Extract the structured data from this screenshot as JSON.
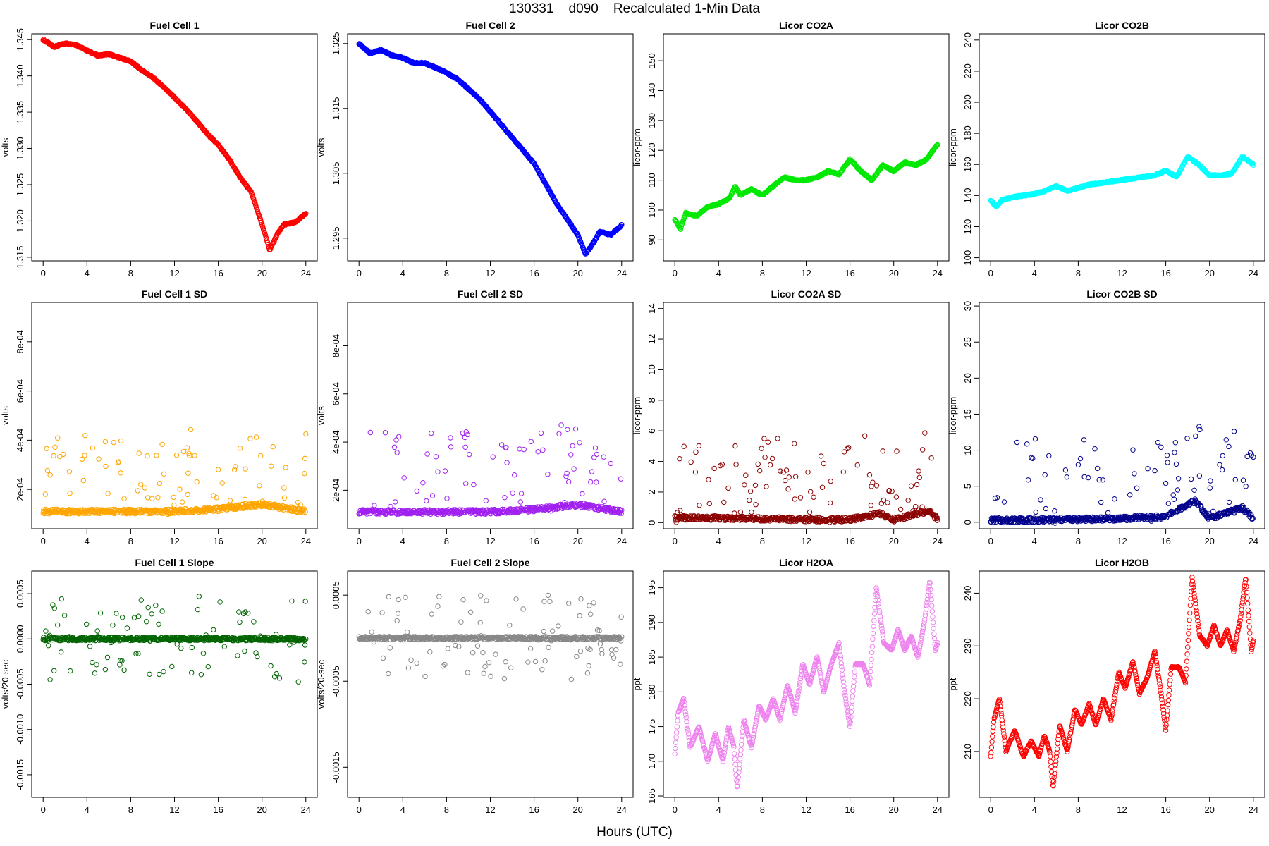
{
  "figure": {
    "title": "130331    d090    Recalculated 1-Min Data",
    "xlabel": "Hours (UTC)"
  },
  "chart_data": [
    {
      "type": "scatter",
      "title": "Fuel Cell 1",
      "xlabel": "",
      "ylabel": "volts",
      "color": "#ff0000",
      "xlim": [
        0,
        24
      ],
      "ylim": [
        1.3145,
        1.3458
      ],
      "xticks": [
        "0",
        "4",
        "8",
        "12",
        "16",
        "20",
        "24"
      ],
      "yticks": [
        1.315,
        1.32,
        1.325,
        1.33,
        1.335,
        1.34,
        1.345
      ],
      "ytick_labels": [
        "1.315",
        "1.320",
        "1.325",
        "1.330",
        "1.335",
        "1.340",
        "1.345"
      ],
      "grid": false,
      "series": [
        {
          "x": [
            0,
            1,
            2,
            3,
            4,
            5,
            6,
            7,
            8,
            9,
            10,
            11,
            12,
            13,
            14,
            15,
            16,
            17,
            18,
            19,
            20,
            20.7,
            21.5,
            22,
            23,
            24
          ],
          "y": [
            1.345,
            1.344,
            1.3445,
            1.3443,
            1.3435,
            1.3428,
            1.343,
            1.3425,
            1.342,
            1.3408,
            1.3398,
            1.3385,
            1.337,
            1.3355,
            1.3338,
            1.332,
            1.3305,
            1.3285,
            1.326,
            1.324,
            1.3195,
            1.316,
            1.3185,
            1.3195,
            1.3198,
            1.321
          ]
        }
      ]
    },
    {
      "type": "scatter",
      "title": "Fuel Cell 2",
      "xlabel": "",
      "ylabel": "volts",
      "color": "#0000ff",
      "xlim": [
        0,
        24
      ],
      "ylim": [
        1.2915,
        1.3265
      ],
      "xticks": [
        "0",
        "4",
        "8",
        "12",
        "16",
        "20",
        "24"
      ],
      "yticks": [
        1.295,
        1.305,
        1.315,
        1.325
      ],
      "ytick_labels": [
        "1.295",
        "1.305",
        "1.315",
        "1.325"
      ],
      "grid": false,
      "series": [
        {
          "x": [
            0,
            1,
            2,
            3,
            4,
            5,
            6,
            7,
            8,
            9,
            10,
            11,
            12,
            13,
            14,
            15,
            16,
            17,
            18,
            19,
            20,
            20.7,
            21.5,
            22,
            23,
            24
          ],
          "y": [
            1.325,
            1.3235,
            1.324,
            1.3232,
            1.3228,
            1.322,
            1.322,
            1.3213,
            1.3205,
            1.3195,
            1.318,
            1.3165,
            1.3145,
            1.3125,
            1.3105,
            1.3085,
            1.3065,
            1.3035,
            1.3005,
            1.298,
            1.2955,
            1.2925,
            1.2945,
            1.296,
            1.2955,
            1.297
          ]
        }
      ]
    },
    {
      "type": "scatter",
      "title": "Licor CO2A",
      "xlabel": "",
      "ylabel": "licor-ppm",
      "color": "#00e800",
      "xlim": [
        0,
        24
      ],
      "ylim": [
        83,
        159
      ],
      "xticks": [
        "0",
        "4",
        "8",
        "12",
        "16",
        "20",
        "24"
      ],
      "yticks": [
        90,
        100,
        110,
        120,
        130,
        140,
        150
      ],
      "ytick_labels": [
        "90",
        "100",
        "110",
        "120",
        "130",
        "140",
        "150"
      ],
      "grid": false,
      "series": [
        {
          "x": [
            0,
            0.5,
            1,
            2,
            3,
            4,
            5,
            5.5,
            6,
            7,
            8,
            9,
            10,
            11,
            12,
            13,
            14,
            15,
            16,
            17,
            18,
            19,
            20,
            21,
            22,
            23,
            24
          ],
          "y": [
            97,
            93.5,
            99,
            98,
            101,
            102,
            104,
            108,
            105,
            107,
            105,
            108,
            111,
            110,
            110,
            111,
            113,
            112,
            117,
            113,
            110,
            115,
            113,
            116,
            115,
            117,
            122
          ]
        }
      ]
    },
    {
      "type": "scatter",
      "title": "Licor CO2B",
      "xlabel": "",
      "ylabel": "licor-ppm",
      "color": "#00ffff",
      "xlim": [
        0,
        24
      ],
      "ylim": [
        98,
        244
      ],
      "xticks": [
        "0",
        "4",
        "8",
        "12",
        "16",
        "20",
        "24"
      ],
      "yticks": [
        100,
        120,
        140,
        160,
        180,
        200,
        220,
        240
      ],
      "ytick_labels": [
        "100",
        "120",
        "140",
        "160",
        "180",
        "200",
        "220",
        "240"
      ],
      "grid": false,
      "series": [
        {
          "x": [
            0,
            0.5,
            1,
            2,
            3,
            4,
            5,
            6,
            7,
            8,
            9,
            10,
            11,
            12,
            13,
            14,
            15,
            16,
            17,
            18,
            19,
            20,
            21,
            22,
            23,
            24
          ],
          "y": [
            137,
            133,
            137,
            139,
            140,
            141,
            143,
            146,
            143,
            145,
            147,
            148,
            149,
            150,
            151,
            152,
            153,
            156,
            152,
            165,
            160,
            153,
            153,
            154,
            165,
            160
          ]
        }
      ]
    },
    {
      "type": "scatter",
      "title": "Fuel Cell 1 SD",
      "xlabel": "",
      "ylabel": "volts",
      "color": "#ffa500",
      "xlim": [
        0,
        24
      ],
      "ylim": [
        4e-05,
        0.00096
      ],
      "xticks": [
        "0",
        "4",
        "8",
        "12",
        "16",
        "20",
        "24"
      ],
      "yticks": [
        0.0002,
        0.0004,
        0.0006,
        0.0008
      ],
      "ytick_labels": [
        "2e-04",
        "4e-04",
        "6e-04",
        "8e-04"
      ],
      "grid": false,
      "series": [
        {
          "x": [
            0,
            4,
            8,
            12,
            16,
            20,
            24
          ],
          "y": [
            0.00011,
            0.00011,
            0.00011,
            0.00011,
            0.00012,
            0.00014,
            0.00011
          ]
        }
      ]
    },
    {
      "type": "scatter",
      "title": "Fuel Cell 2 SD",
      "xlabel": "",
      "ylabel": "volts",
      "color": "#a020f0",
      "xlim": [
        0,
        24
      ],
      "ylim": [
        4e-05,
        0.00098
      ],
      "xticks": [
        "0",
        "4",
        "8",
        "12",
        "16",
        "20",
        "24"
      ],
      "yticks": [
        0.0002,
        0.0004,
        0.0006,
        0.0008
      ],
      "ytick_labels": [
        "2e-04",
        "4e-04",
        "6e-04",
        "8e-04"
      ],
      "grid": false,
      "series": [
        {
          "x": [
            0,
            4,
            8,
            12,
            16,
            20,
            24
          ],
          "y": [
            0.00011,
            0.00011,
            0.00011,
            0.00011,
            0.00012,
            0.00014,
            0.00011
          ]
        }
      ]
    },
    {
      "type": "scatter",
      "title": "Licor CO2A SD",
      "xlabel": "",
      "ylabel": "licor-ppm",
      "color": "#8b0000",
      "xlim": [
        0,
        24
      ],
      "ylim": [
        -0.4,
        14.4
      ],
      "xticks": [
        "0",
        "4",
        "8",
        "12",
        "16",
        "20",
        "24"
      ],
      "yticks": [
        0,
        2,
        4,
        6,
        8,
        10,
        12,
        14
      ],
      "ytick_labels": [
        "0",
        "2",
        "4",
        "6",
        "8",
        "10",
        "12",
        "14"
      ],
      "grid": false,
      "series": [
        {
          "x": [
            0,
            4,
            8,
            12,
            16,
            18.7,
            20,
            23.3,
            24
          ],
          "y": [
            0.3,
            0.3,
            0.25,
            0.2,
            0.2,
            0.6,
            0.2,
            0.8,
            0.2
          ]
        }
      ]
    },
    {
      "type": "scatter",
      "title": "Licor CO2B SD",
      "xlabel": "",
      "ylabel": "licor-ppm",
      "color": "#00008b",
      "xlim": [
        0,
        24
      ],
      "ylim": [
        -0.9,
        30.5
      ],
      "xticks": [
        "0",
        "4",
        "8",
        "12",
        "16",
        "20",
        "24"
      ],
      "yticks": [
        0,
        5,
        10,
        15,
        20,
        25,
        30
      ],
      "ytick_labels": [
        "0",
        "5",
        "10",
        "15",
        "20",
        "25",
        "30"
      ],
      "grid": false,
      "series": [
        {
          "x": [
            0,
            4,
            8,
            12,
            16,
            18.7,
            20,
            23,
            24
          ],
          "y": [
            0.3,
            0.3,
            0.4,
            0.5,
            0.8,
            3,
            0.5,
            2,
            0.5
          ]
        }
      ]
    },
    {
      "type": "scatter",
      "title": "Fuel Cell 1 Slope",
      "xlabel": "",
      "ylabel": "volts/20-sec",
      "color": "#006400",
      "xlim": [
        0,
        24
      ],
      "ylim": [
        -0.00175,
        0.00075
      ],
      "xticks": [
        "0",
        "4",
        "8",
        "12",
        "16",
        "20",
        "24"
      ],
      "yticks": [
        -0.0015,
        -0.001,
        -0.0005,
        0,
        0.0005
      ],
      "ytick_labels": [
        "-0.0015",
        "-0.0010",
        "-0.0005",
        "0.0000",
        "0.0005"
      ],
      "grid": false,
      "series": [
        {
          "x": [
            0,
            4,
            8,
            12,
            16,
            20,
            24
          ],
          "y": [
            0,
            0,
            0,
            0,
            0,
            0,
            0
          ]
        }
      ]
    },
    {
      "type": "scatter",
      "title": "Fuel Cell 2 Slope",
      "xlabel": "",
      "ylabel": "volts/20-sec",
      "color": "#888888",
      "xlim": [
        0,
        24
      ],
      "ylim": [
        -0.00185,
        0.00078
      ],
      "xticks": [
        "0",
        "4",
        "8",
        "12",
        "16",
        "20",
        "24"
      ],
      "yticks": [
        -0.0015,
        -0.0005,
        0.0005
      ],
      "ytick_labels": [
        "-0.0015",
        "-0.0005",
        "0.0005"
      ],
      "grid": false,
      "series": [
        {
          "x": [
            0,
            4,
            8,
            12,
            16,
            20,
            24
          ],
          "y": [
            0,
            0,
            0,
            0,
            0,
            0,
            0
          ]
        }
      ]
    },
    {
      "type": "scatter",
      "title": "Licor H2OA",
      "xlabel": "",
      "ylabel": "ppt",
      "color": "#ee82ee",
      "xlim": [
        0,
        24
      ],
      "ylim": [
        164.8,
        197.4
      ],
      "xticks": [
        "0",
        "4",
        "8",
        "12",
        "16",
        "20",
        "24"
      ],
      "yticks": [
        165,
        170,
        175,
        180,
        185,
        190,
        195
      ],
      "ytick_labels": [
        "165",
        "170",
        "175",
        "180",
        "185",
        "190",
        "195"
      ],
      "grid": false,
      "series": [
        {
          "x": [
            0,
            0.3,
            0.8,
            1.4,
            2.2,
            3.0,
            3.7,
            4.4,
            4.9,
            5.4,
            5.7,
            6.3,
            7.0,
            7.7,
            8.3,
            9.0,
            9.6,
            10.3,
            11.0,
            11.7,
            12.3,
            13.0,
            13.6,
            14.3,
            15.0,
            15.5,
            16.0,
            16.5,
            17.2,
            17.8,
            18.4,
            19.1,
            19.8,
            20.4,
            21.0,
            21.6,
            22.2,
            22.8,
            23.3,
            23.8,
            24
          ],
          "y": [
            171,
            177,
            179,
            172,
            175,
            170,
            174,
            170,
            175,
            172,
            166,
            176,
            172,
            178,
            176,
            179,
            176,
            181,
            177,
            184,
            181,
            185,
            180,
            184,
            187,
            180,
            175,
            184,
            184,
            181,
            195,
            187,
            186,
            189,
            186,
            188,
            185,
            190,
            196,
            186,
            187
          ]
        }
      ]
    },
    {
      "type": "scatter",
      "title": "Licor H2OB",
      "xlabel": "",
      "ylabel": "ppt",
      "color": "#ff0000",
      "xlim": [
        0,
        24
      ],
      "ylim": [
        201.3,
        244.2
      ],
      "xticks": [
        "0",
        "4",
        "8",
        "12",
        "16",
        "20",
        "24"
      ],
      "yticks": [
        210,
        220,
        230,
        240
      ],
      "ytick_labels": [
        "210",
        "220",
        "230",
        "240"
      ],
      "grid": false,
      "series": [
        {
          "x": [
            0,
            0.3,
            0.8,
            1.4,
            2.2,
            3.0,
            3.7,
            4.4,
            4.9,
            5.4,
            5.7,
            6.3,
            7.0,
            7.7,
            8.3,
            9.0,
            9.6,
            10.3,
            11.0,
            11.7,
            12.3,
            13.0,
            13.6,
            14.3,
            15.0,
            15.5,
            16.0,
            16.5,
            17.2,
            17.8,
            18.4,
            19.1,
            19.8,
            20.4,
            21.0,
            21.6,
            22.2,
            22.8,
            23.3,
            23.8,
            24
          ],
          "y": [
            209,
            216,
            220,
            210,
            214,
            209,
            212,
            209,
            213,
            210,
            203,
            215,
            210,
            218,
            215,
            219,
            215,
            220,
            216,
            225,
            222,
            227,
            221,
            224,
            229,
            222,
            214,
            226,
            226,
            223,
            243,
            232,
            230,
            234,
            230,
            233,
            229,
            235,
            243,
            229,
            231
          ]
        }
      ]
    }
  ]
}
